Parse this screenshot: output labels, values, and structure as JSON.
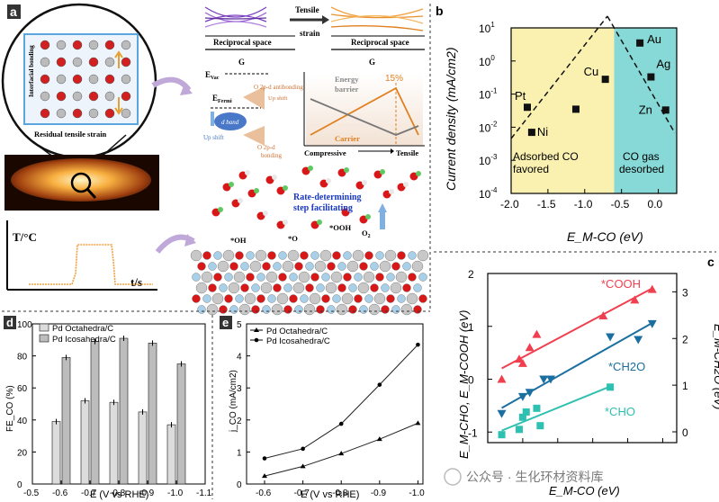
{
  "panel_letters": {
    "a": "a",
    "b": "b",
    "c": "c",
    "d": "d",
    "e": "e"
  },
  "panel_a": {
    "circle_labels": {
      "interfacial": "Interfacial bonding",
      "residual": "Residual tensile strain"
    },
    "temp_axis": {
      "y": "T/°C",
      "x": "t/s"
    },
    "reciprocal_label": "Reciprocal space",
    "g_label": "G",
    "tensile_strain": "Tensile\nstrain",
    "tensile_line1": "Tensile",
    "tensile_line2": "strain",
    "energy_diagram": {
      "evac": "E",
      "evac_sub": "Vac",
      "efermi": "E",
      "efermi_sub": "Fermi",
      "antibonding": "O 2p-d antibonding",
      "upshift": "Up shift",
      "dband": "d band",
      "upshift2": "Up shift",
      "bonding_line1": "O 2p-d",
      "bonding_line2": "bonding"
    },
    "barrier": {
      "title1": "Energy",
      "title2": "barrier",
      "pct": "15%",
      "carrier": "Carrier",
      "compressive": "Compressive",
      "tensile": "Tensile"
    },
    "rds_line1": "Rate-determining",
    "rds_line2": "step facilitating",
    "species": {
      "ooh": "*OOH",
      "oh": "*OH",
      "o": "*O",
      "o2": "O",
      "o2_sub": "2"
    }
  },
  "chart_data": [
    {
      "id": "b",
      "type": "scatter",
      "xlabel": "E_M-CO (eV)",
      "ylabel": "Current density (mA/cm2)",
      "yscale": "log",
      "xlim": [
        -2.0,
        0.25
      ],
      "ylim_exp": [
        -4,
        1
      ],
      "xticks": [
        "-2.0",
        "-1.5",
        "-1.0",
        "-0.5",
        "0.0"
      ],
      "yticks": [
        "10^-4",
        "10^-3",
        "10^-2",
        "10^-1",
        "10^0",
        "10^1"
      ],
      "regions": [
        {
          "label_line1": "Adsorbed CO",
          "label_line2": "favored",
          "color": "#faf0b0",
          "x_from": -2.0,
          "x_to": -0.6
        },
        {
          "label_line1": "CO gas",
          "label_line2": "desorbed",
          "color": "#86d9d6",
          "x_from": -0.6,
          "x_to": 0.25
        }
      ],
      "points": [
        {
          "label": "Pt",
          "x": -1.78,
          "y": 0.04
        },
        {
          "label": "Ni",
          "x": -1.72,
          "y": 0.007
        },
        {
          "label": "",
          "x": -1.12,
          "y": 0.035
        },
        {
          "label": "Cu",
          "x": -0.72,
          "y": 0.28
        },
        {
          "label": "Au",
          "x": -0.25,
          "y": 3.5
        },
        {
          "label": "Ag",
          "x": -0.1,
          "y": 0.33
        },
        {
          "label": "Zn",
          "x": 0.1,
          "y": 0.033
        }
      ]
    },
    {
      "id": "c",
      "type": "scatter",
      "xlabel": "E_M-CO (eV)",
      "ylabel_left": "E_M-CHO, E_M-COOH (eV)",
      "ylabel_right": "E_M-CH2O (eV)",
      "xlim": [
        -2.5,
        0.2
      ],
      "ylim": [
        -1.2,
        2.0
      ],
      "yticks_left": [
        "-1",
        "0",
        "1",
        "2"
      ],
      "yticks_right": [
        "0",
        "1",
        "2",
        "3"
      ],
      "series": [
        {
          "name": "*COOH",
          "color": "#f04050",
          "marker": "triangle-up",
          "x": [
            -2.3,
            -2.05,
            -2.0,
            -1.9,
            -1.8,
            -0.85,
            -0.4,
            -0.15
          ],
          "y": [
            0.0,
            0.38,
            0.3,
            0.6,
            0.85,
            1.2,
            1.5,
            1.7
          ]
        },
        {
          "name": "*CH2O",
          "color": "#1a6fa0",
          "marker": "triangle-down",
          "x": [
            -2.3,
            -2.0,
            -1.9,
            -1.7,
            -1.6,
            -0.75,
            -0.35,
            -0.15
          ],
          "y": [
            -0.65,
            -0.33,
            -0.25,
            0.0,
            0.0,
            0.8,
            0.75,
            1.05
          ]
        },
        {
          "name": "*CHO",
          "color": "#2ec0b0",
          "marker": "square",
          "x": [
            -2.3,
            -2.05,
            -2.0,
            -1.95,
            -1.8,
            -1.75,
            -0.75
          ],
          "y": [
            -1.05,
            -0.95,
            -0.72,
            -0.62,
            -0.55,
            -0.88,
            -0.15
          ]
        }
      ]
    },
    {
      "id": "d",
      "type": "bar",
      "ylabel": "FE_CO (%)",
      "xlabel": "E (V vs RHE)",
      "ylim": [
        0,
        100
      ],
      "yticks": [
        "0",
        "20",
        "40",
        "60",
        "80",
        "100"
      ],
      "xticks": [
        "-0.5",
        "-0.6",
        "-0.7",
        "-0.8",
        "-0.9",
        "-1.0",
        "-1.1"
      ],
      "categories": [
        "-0.6",
        "-0.7",
        "-0.8",
        "-0.9",
        "-1.0"
      ],
      "series": [
        {
          "name": "Pd Octahedra/C",
          "color": "#dcdcdc",
          "values": [
            39,
            52,
            51,
            45,
            37
          ]
        },
        {
          "name": "Pd Icosahedra/C",
          "color": "#bdbdbd",
          "values": [
            79,
            89,
            91,
            88,
            75
          ]
        }
      ]
    },
    {
      "id": "e",
      "type": "line",
      "ylabel": "j_CO (mA/cm2)",
      "xlabel": "E (V vs RHE)",
      "ylim": [
        0,
        5
      ],
      "yticks": [
        "0",
        "1",
        "2",
        "3",
        "4",
        "5"
      ],
      "categories": [
        "-0.6",
        "-0.7",
        "-0.8",
        "-0.9",
        "-1.0"
      ],
      "series": [
        {
          "name": "Pd Octahedra/C",
          "marker": "triangle",
          "values": [
            0.25,
            0.55,
            0.95,
            1.4,
            1.9
          ]
        },
        {
          "name": "Pd Icosahedra/C",
          "marker": "circle",
          "values": [
            0.8,
            1.1,
            1.88,
            3.1,
            4.35
          ]
        }
      ]
    }
  ],
  "watermark": "公众号 · 生化环材资料库"
}
